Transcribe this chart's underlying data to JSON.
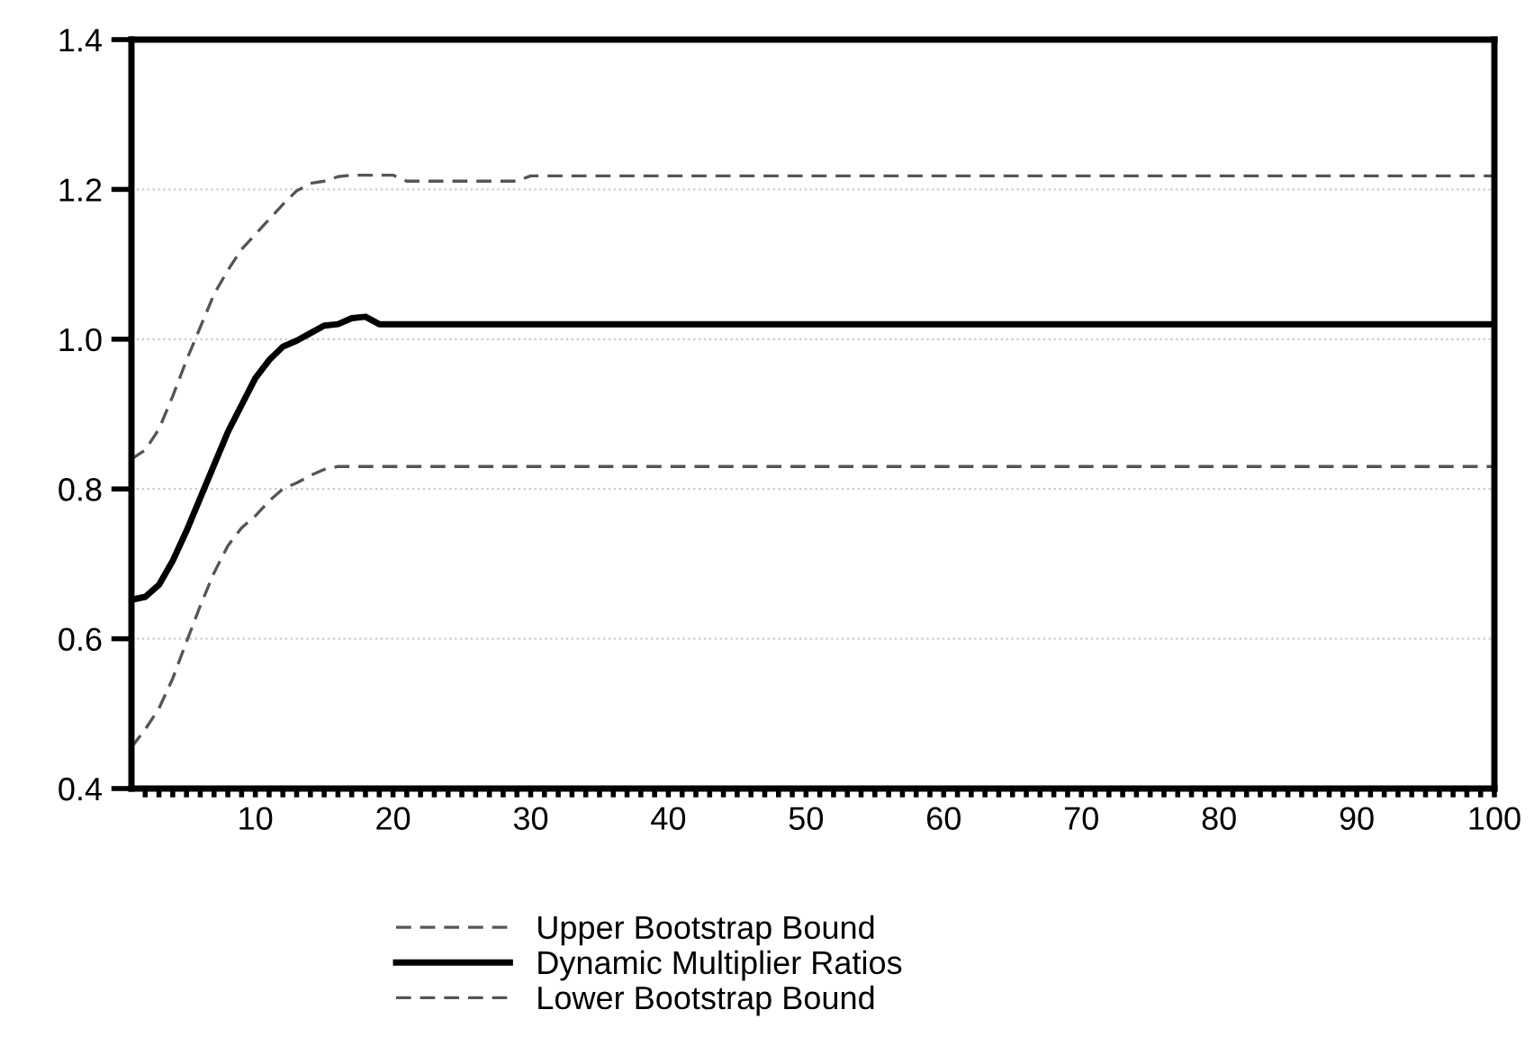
{
  "chart_data": {
    "type": "line",
    "series": [
      {
        "name": "Upper Bootstrap Bound",
        "color": "#555555",
        "line_style": "dashed",
        "x": [
          1,
          2,
          3,
          4,
          5,
          6,
          7,
          8,
          9,
          10,
          11,
          12,
          13,
          14,
          15,
          16,
          17,
          18,
          19,
          20,
          21,
          29,
          30,
          100
        ],
        "values": [
          0.84,
          0.852,
          0.88,
          0.924,
          0.972,
          1.016,
          1.06,
          1.092,
          1.12,
          1.14,
          1.16,
          1.18,
          1.198,
          1.208,
          1.211,
          1.217,
          1.219,
          1.219,
          1.219,
          1.219,
          1.211,
          1.211,
          1.218,
          1.218
        ]
      },
      {
        "name": "Dynamic Multiplier Ratios",
        "color": "#000000",
        "line_style": "solid",
        "x": [
          1,
          2,
          3,
          4,
          5,
          6,
          7,
          8,
          9,
          10,
          11,
          12,
          13,
          14,
          15,
          16,
          17,
          18,
          19,
          20,
          100
        ],
        "values": [
          0.652,
          0.656,
          0.672,
          0.704,
          0.744,
          0.788,
          0.832,
          0.876,
          0.912,
          0.948,
          0.972,
          0.99,
          0.998,
          1.008,
          1.018,
          1.02,
          1.028,
          1.03,
          1.02,
          1.02,
          1.02
        ]
      },
      {
        "name": "Lower Bootstrap Bound",
        "color": "#555555",
        "line_style": "dashed",
        "x": [
          1,
          2,
          3,
          4,
          5,
          6,
          7,
          8,
          9,
          10,
          11,
          12,
          13,
          14,
          15,
          16,
          17,
          100
        ],
        "values": [
          0.455,
          0.479,
          0.507,
          0.547,
          0.596,
          0.644,
          0.688,
          0.724,
          0.748,
          0.764,
          0.784,
          0.8,
          0.808,
          0.818,
          0.826,
          0.83,
          0.83,
          0.83
        ]
      }
    ],
    "xlim": [
      1,
      100
    ],
    "xticks": [
      {
        "value": 2,
        "label": null
      },
      {
        "value": 3,
        "label": null
      },
      {
        "value": 4,
        "label": null
      },
      {
        "value": 5,
        "label": null
      },
      {
        "value": 6,
        "label": null
      },
      {
        "value": 7,
        "label": null
      },
      {
        "value": 8,
        "label": null
      },
      {
        "value": 9,
        "label": null
      },
      10,
      {
        "value": 11,
        "label": null
      },
      {
        "value": 12,
        "label": null
      },
      {
        "value": 13,
        "label": null
      },
      {
        "value": 14,
        "label": null
      },
      {
        "value": 15,
        "label": null
      },
      {
        "value": 16,
        "label": null
      },
      {
        "value": 17,
        "label": null
      },
      {
        "value": 18,
        "label": null
      },
      {
        "value": 19,
        "label": null
      },
      20,
      {
        "value": 21,
        "label": null
      },
      {
        "value": 22,
        "label": null
      },
      {
        "value": 23,
        "label": null
      },
      {
        "value": 24,
        "label": null
      },
      {
        "value": 25,
        "label": null
      },
      {
        "value": 26,
        "label": null
      },
      {
        "value": 27,
        "label": null
      },
      {
        "value": 28,
        "label": null
      },
      {
        "value": 29,
        "label": null
      },
      30,
      {
        "value": 31,
        "label": null
      },
      {
        "value": 32,
        "label": null
      },
      {
        "value": 33,
        "label": null
      },
      {
        "value": 34,
        "label": null
      },
      {
        "value": 35,
        "label": null
      },
      {
        "value": 36,
        "label": null
      },
      {
        "value": 37,
        "label": null
      },
      {
        "value": 38,
        "label": null
      },
      {
        "value": 39,
        "label": null
      },
      40,
      {
        "value": 41,
        "label": null
      },
      {
        "value": 42,
        "label": null
      },
      {
        "value": 43,
        "label": null
      },
      {
        "value": 44,
        "label": null
      },
      {
        "value": 45,
        "label": null
      },
      {
        "value": 46,
        "label": null
      },
      {
        "value": 47,
        "label": null
      },
      {
        "value": 48,
        "label": null
      },
      {
        "value": 49,
        "label": null
      },
      50,
      {
        "value": 51,
        "label": null
      },
      {
        "value": 52,
        "label": null
      },
      {
        "value": 53,
        "label": null
      },
      {
        "value": 54,
        "label": null
      },
      {
        "value": 55,
        "label": null
      },
      {
        "value": 56,
        "label": null
      },
      {
        "value": 57,
        "label": null
      },
      {
        "value": 58,
        "label": null
      },
      {
        "value": 59,
        "label": null
      },
      60,
      {
        "value": 61,
        "label": null
      },
      {
        "value": 62,
        "label": null
      },
      {
        "value": 63,
        "label": null
      },
      {
        "value": 64,
        "label": null
      },
      {
        "value": 65,
        "label": null
      },
      {
        "value": 66,
        "label": null
      },
      {
        "value": 67,
        "label": null
      },
      {
        "value": 68,
        "label": null
      },
      {
        "value": 69,
        "label": null
      },
      70,
      {
        "value": 71,
        "label": null
      },
      {
        "value": 72,
        "label": null
      },
      {
        "value": 73,
        "label": null
      },
      {
        "value": 74,
        "label": null
      },
      {
        "value": 75,
        "label": null
      },
      {
        "value": 76,
        "label": null
      },
      {
        "value": 77,
        "label": null
      },
      {
        "value": 78,
        "label": null
      },
      {
        "value": 79,
        "label": null
      },
      80,
      {
        "value": 81,
        "label": null
      },
      {
        "value": 82,
        "label": null
      },
      {
        "value": 83,
        "label": null
      },
      {
        "value": 84,
        "label": null
      },
      {
        "value": 85,
        "label": null
      },
      {
        "value": 86,
        "label": null
      },
      {
        "value": 87,
        "label": null
      },
      {
        "value": 88,
        "label": null
      },
      {
        "value": 89,
        "label": null
      },
      90,
      {
        "value": 91,
        "label": null
      },
      {
        "value": 92,
        "label": null
      },
      {
        "value": 93,
        "label": null
      },
      {
        "value": 94,
        "label": null
      },
      {
        "value": 95,
        "label": null
      },
      {
        "value": 96,
        "label": null
      },
      {
        "value": 97,
        "label": null
      },
      {
        "value": 98,
        "label": null
      },
      {
        "value": 99,
        "label": null
      },
      100
    ],
    "ylim": [
      0.4,
      1.4
    ],
    "yticks": [
      {
        "value": 0.4,
        "label": "0.4"
      },
      {
        "value": 0.6,
        "label": "0.6"
      },
      {
        "value": 0.8,
        "label": "0.8"
      },
      {
        "value": 1.0,
        "label": "1.0"
      },
      {
        "value": 1.2,
        "label": "1.2"
      },
      {
        "value": 1.4,
        "label": "1.4"
      }
    ],
    "grid": "y",
    "legend": "bottom"
  }
}
